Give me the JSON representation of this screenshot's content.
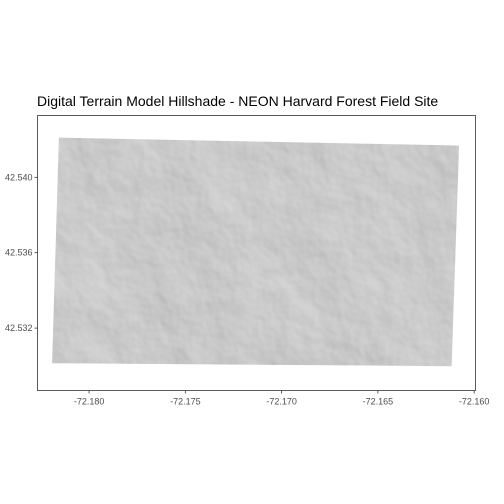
{
  "title": "Digital Terrain Model Hillshade - NEON Harvard Forest Field Site",
  "panel": {
    "background": "#ffffff",
    "border_color": "#333333"
  },
  "raster": {
    "layer": "hillshade",
    "base_color": "#8c8c8c",
    "corners_lonlat": [
      [
        -72.18157,
        42.54211
      ],
      [
        -72.16078,
        42.54169
      ],
      [
        -72.16117,
        42.52998
      ],
      [
        -72.18192,
        42.53014
      ]
    ]
  },
  "x_axis": {
    "lim": [
      -72.18268,
      -72.15993
    ],
    "ticks": [
      {
        "value": -72.18,
        "label": "-72.180"
      },
      {
        "value": -72.175,
        "label": "-72.175"
      },
      {
        "value": -72.17,
        "label": "-72.170"
      },
      {
        "value": -72.165,
        "label": "-72.165"
      },
      {
        "value": -72.16,
        "label": "-72.160"
      }
    ]
  },
  "y_axis": {
    "lim": [
      42.52869,
      42.54328
    ],
    "ticks": [
      {
        "value": 42.54,
        "label": "42.540"
      },
      {
        "value": 42.536,
        "label": "42.536"
      },
      {
        "value": 42.532,
        "label": "42.532"
      }
    ]
  }
}
